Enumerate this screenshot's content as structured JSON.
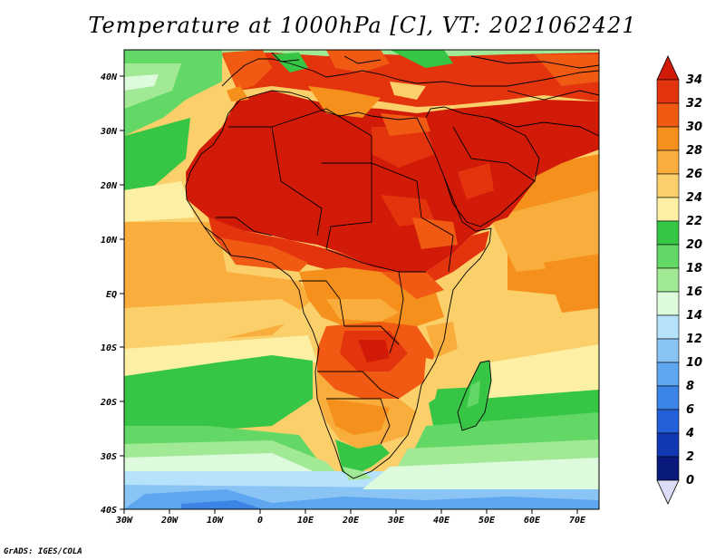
{
  "title": "Temperature at 1000hPa [C], VT: 2021062421",
  "credit": "GrADS: IGES/COLA",
  "map": {
    "variable": "temperature",
    "level_hpa": 1000,
    "units": "C",
    "region": "Africa",
    "lon_range": [
      -30,
      75
    ],
    "lat_range": [
      -40,
      45
    ],
    "lon_ticks": [
      "30W",
      "20W",
      "10W",
      "0",
      "10E",
      "20E",
      "30E",
      "40E",
      "50E",
      "60E",
      "70E"
    ],
    "lat_ticks": [
      "40N",
      "30N",
      "20N",
      "10N",
      "EQ",
      "10S",
      "20S",
      "30S",
      "40S"
    ]
  },
  "colorbar": {
    "labels": [
      "34",
      "32",
      "30",
      "28",
      "26",
      "24",
      "22",
      "20",
      "18",
      "16",
      "14",
      "12",
      "10",
      "8",
      "6",
      "4",
      "2",
      "0"
    ],
    "colors": {
      "above": "#d21a08",
      "b32_34": "#e4340e",
      "b30_32": "#f05a12",
      "b28_30": "#f6901c",
      "b26_28": "#f9ad3c",
      "b24_26": "#fbd06a",
      "b22_24": "#fdf0a4",
      "b20_22": "#36c545",
      "b18_20": "#64d866",
      "b16_18": "#a2e996",
      "b14_16": "#ddfadc",
      "b12_14": "#b7e2fb",
      "b10_12": "#8ac4f5",
      "b8_10": "#5ea6ef",
      "b6_8": "#3c84e6",
      "b4_6": "#2360d9",
      "b2_4": "#1238b4",
      "b0_2": "#0a1a7c",
      "below": "#dcdcf6"
    }
  }
}
